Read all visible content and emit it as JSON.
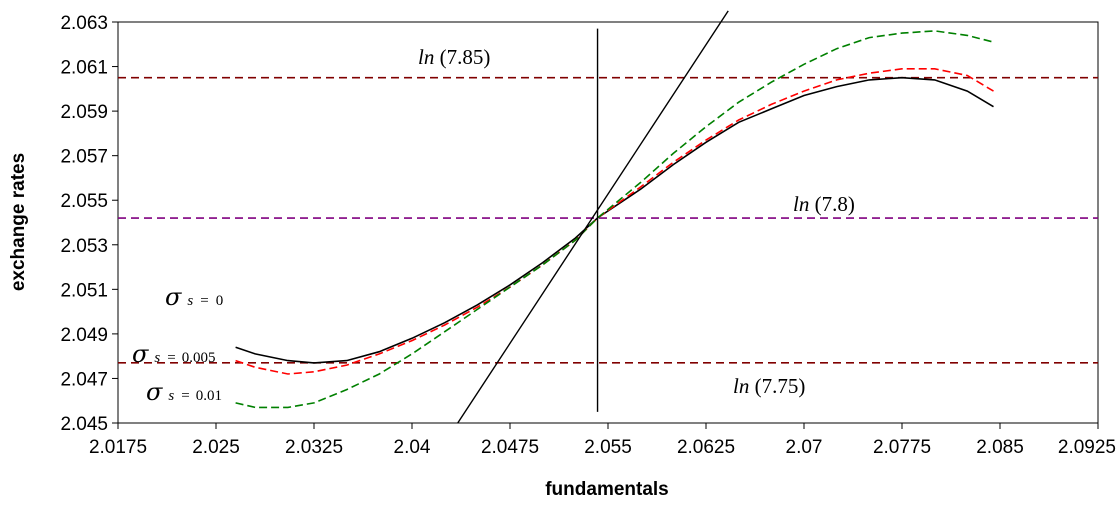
{
  "chart_data": {
    "type": "line",
    "xlabel": "fundamentals",
    "ylabel": "exchange rates",
    "xlim": [
      2.0175,
      2.0925
    ],
    "ylim": [
      2.045,
      2.063
    ],
    "x_ticks": [
      "2.0175",
      "2.025",
      "2.0325",
      "2.04",
      "2.0475",
      "2.055",
      "2.0625",
      "2.07",
      "2.0775",
      "2.085",
      "2.0925"
    ],
    "y_ticks": [
      "2.045",
      "2.047",
      "2.049",
      "2.051",
      "2.053",
      "2.055",
      "2.057",
      "2.059",
      "2.061",
      "2.063"
    ],
    "grid": false,
    "reference_lines": [
      {
        "value": 2.0605,
        "color": "#800000",
        "label_text": "(7.85)",
        "label_prefix": "ln"
      },
      {
        "value": 2.0542,
        "color": "#800080",
        "label_text": "(7.8)",
        "label_prefix": "ln"
      },
      {
        "value": 2.0477,
        "color": "#800000",
        "label_text": "(7.75)",
        "label_prefix": "ln"
      }
    ],
    "vertical_line": {
      "x": 2.0542,
      "y_from": 2.0455,
      "y_to": 2.0627,
      "color": "#000000"
    },
    "diagonal_line": {
      "points": [
        [
          2.0435,
          2.045
        ],
        [
          2.0642,
          2.0635
        ]
      ],
      "color": "#000000"
    },
    "series": [
      {
        "label_value": "0",
        "color": "#000000",
        "dash": "solid",
        "x": [
          2.0265,
          2.028,
          2.0305,
          2.0325,
          2.035,
          2.0375,
          2.04,
          2.0425,
          2.045,
          2.0475,
          2.05,
          2.0525,
          2.0542,
          2.0575,
          2.06,
          2.0625,
          2.065,
          2.0675,
          2.07,
          2.0725,
          2.075,
          2.0775,
          2.08,
          2.0825,
          2.0845
        ],
        "y": [
          2.0484,
          2.0481,
          2.0478,
          2.0477,
          2.0478,
          2.0482,
          2.0488,
          2.0495,
          2.0503,
          2.0512,
          2.0522,
          2.0533,
          2.0542,
          2.0555,
          2.0566,
          2.0576,
          2.0585,
          2.0591,
          2.0597,
          2.0601,
          2.0604,
          2.0605,
          2.0604,
          2.0599,
          2.0592
        ]
      },
      {
        "label_value": "0.005",
        "color": "#ff0000",
        "dash": "dashed",
        "x": [
          2.0265,
          2.028,
          2.0305,
          2.0325,
          2.035,
          2.0375,
          2.04,
          2.0425,
          2.045,
          2.0475,
          2.05,
          2.0525,
          2.0542,
          2.0575,
          2.06,
          2.0625,
          2.065,
          2.0675,
          2.07,
          2.0725,
          2.075,
          2.0775,
          2.08,
          2.0825,
          2.0845
        ],
        "y": [
          2.0478,
          2.0475,
          2.0472,
          2.0473,
          2.0476,
          2.0481,
          2.0487,
          2.0494,
          2.0502,
          2.0511,
          2.0521,
          2.0532,
          2.0542,
          2.0556,
          2.0567,
          2.0577,
          2.0586,
          2.0593,
          2.0599,
          2.0604,
          2.0607,
          2.0609,
          2.0609,
          2.0606,
          2.0599
        ]
      },
      {
        "label_value": "0.01",
        "color": "#008000",
        "dash": "dashed",
        "x": [
          2.0265,
          2.028,
          2.0305,
          2.0325,
          2.035,
          2.0375,
          2.04,
          2.0425,
          2.045,
          2.0475,
          2.05,
          2.0525,
          2.0542,
          2.0575,
          2.06,
          2.0625,
          2.065,
          2.0675,
          2.07,
          2.0725,
          2.075,
          2.0775,
          2.08,
          2.0825,
          2.0845
        ],
        "y": [
          2.0459,
          2.0457,
          2.0457,
          2.0459,
          2.0465,
          2.0472,
          2.0481,
          2.0491,
          2.0501,
          2.0511,
          2.0521,
          2.0532,
          2.0542,
          2.0558,
          2.0571,
          2.0583,
          2.0594,
          2.0603,
          2.0611,
          2.0618,
          2.0623,
          2.0625,
          2.0626,
          2.0624,
          2.0621
        ]
      }
    ]
  },
  "annotations": {
    "sigma_symbol": "σ",
    "sigma_subscript": "s",
    "sigma_equals": "=",
    "ln_prefix": "ln"
  }
}
